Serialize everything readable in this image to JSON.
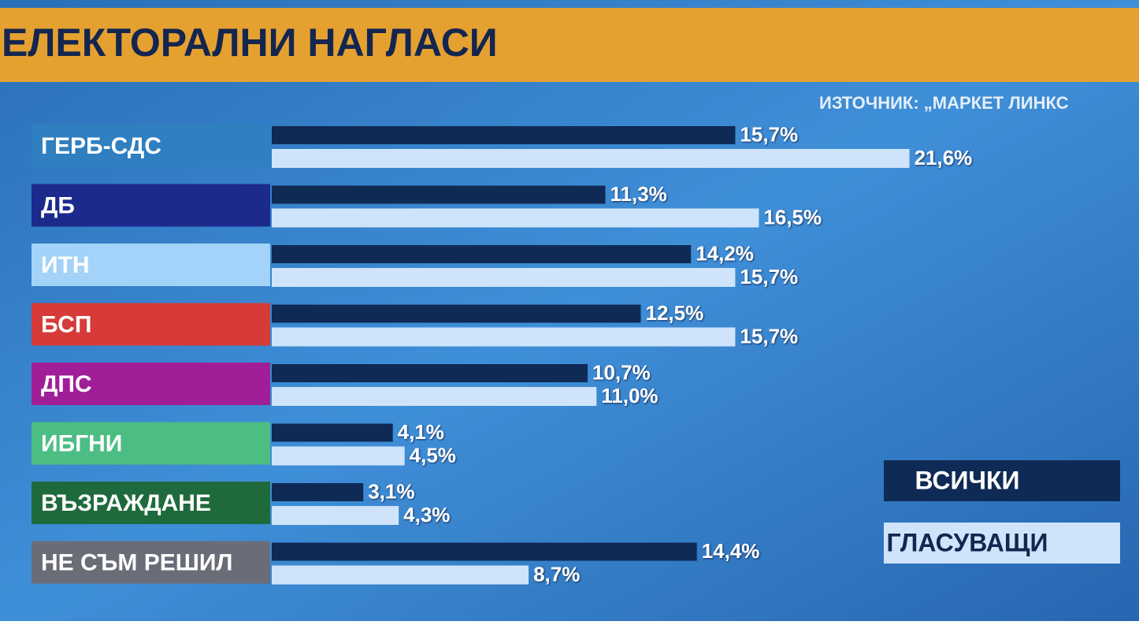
{
  "chart_data": {
    "type": "hbar",
    "title": "ЕЛЕКТОРАЛНИ НАГЛАСИ",
    "source": "ИЗТОЧНИК: „МАРКЕТ ЛИНКС",
    "categories": [
      "ГЕРБ-СДС",
      "ДБ",
      "ИТН",
      "БСП",
      "ДПС",
      "ИБГНИ",
      "ВЪЗРАЖДАНЕ",
      "НЕ СЪМ РЕШИЛ"
    ],
    "category_colors": [
      "#2f7fc1",
      "#1b2a8c",
      "#a3d3f8",
      "#d63b3a",
      "#a01f98",
      "#4cbd83",
      "#1f6a3c",
      "#6a6d77"
    ],
    "series": [
      {
        "name": "ВСИЧКИ",
        "color": "#0f2a55",
        "values": [
          15.7,
          11.3,
          14.2,
          12.5,
          10.7,
          4.1,
          3.1,
          14.4
        ],
        "value_labels": [
          "15,7%",
          "11,3%",
          "14,2%",
          "12,5%",
          "10,7%",
          "4,1%",
          "3,1%",
          "14,4%"
        ]
      },
      {
        "name": "ГЛАСУВАЩИ",
        "color": "#cfe4fb",
        "values": [
          21.6,
          16.5,
          15.7,
          15.7,
          11.0,
          4.5,
          4.3,
          8.7
        ],
        "value_labels": [
          "21,6%",
          "16,5%",
          "15,7%",
          "15,7%",
          "11,0%",
          "4,5%",
          "4,3%",
          "8,7%"
        ]
      }
    ],
    "xlim": [
      0,
      25
    ]
  }
}
